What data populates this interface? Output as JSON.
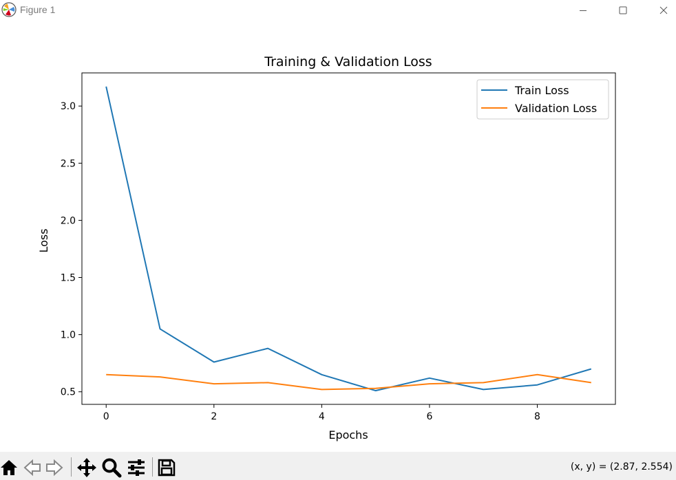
{
  "window": {
    "title": "Figure 1",
    "icons": {
      "app": "matplotlib-icon",
      "minimize": "minimize-icon",
      "maximize": "maximize-icon",
      "close": "close-icon"
    }
  },
  "toolbar": {
    "tools": [
      "home-icon",
      "back-arrow-icon",
      "forward-arrow-icon",
      "pan-move-icon",
      "zoom-magnifier-icon",
      "configure-subplots-icon",
      "save-floppy-icon"
    ],
    "coords_text": "(x, y) = (2.87, 2.554)"
  },
  "colors": {
    "train": "#1f77b4",
    "validation": "#ff7f0e",
    "toolbar_bg": "#f0f0f0"
  },
  "chart_data": {
    "type": "line",
    "title": "Training & Validation Loss",
    "xlabel": "Epochs",
    "ylabel": "Loss",
    "xlim": [
      -0.45,
      9.45
    ],
    "ylim": [
      0.39,
      3.29
    ],
    "xticks": [
      0,
      2,
      4,
      6,
      8
    ],
    "yticks": [
      0.5,
      1.0,
      1.5,
      2.0,
      2.5,
      3.0
    ],
    "xtick_labels": [
      "0",
      "2",
      "4",
      "6",
      "8"
    ],
    "ytick_labels": [
      "0.5",
      "1.0",
      "1.5",
      "2.0",
      "2.5",
      "3.0"
    ],
    "grid": false,
    "legend_position": "top-right",
    "x": [
      0,
      1,
      2,
      3,
      4,
      5,
      6,
      7,
      8,
      9
    ],
    "series": [
      {
        "name": "Train Loss",
        "color": "#1f77b4",
        "values": [
          3.17,
          1.05,
          0.76,
          0.88,
          0.65,
          0.51,
          0.62,
          0.52,
          0.56,
          0.7
        ]
      },
      {
        "name": "Validation Loss",
        "color": "#ff7f0e",
        "values": [
          0.65,
          0.63,
          0.57,
          0.58,
          0.52,
          0.53,
          0.57,
          0.58,
          0.65,
          0.58
        ]
      }
    ]
  }
}
